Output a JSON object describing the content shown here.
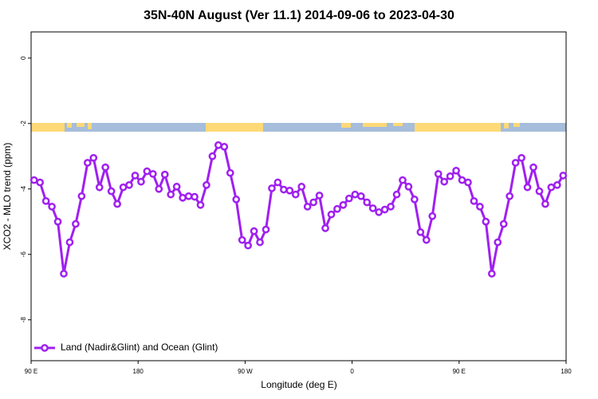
{
  "chart_data": {
    "type": "line",
    "title": "35N-40N August (Ver 11.1)   2014-09-06 to 2023-04-30",
    "x_label": "Longitude (deg E)",
    "y_label": "XCO2 - MLO trend (ppm)",
    "x": [
      92.5,
      97.5,
      102.5,
      107.5,
      112.5,
      117.5,
      122.5,
      127.5,
      132.5,
      137.5,
      142.5,
      147.5,
      152.5,
      157.5,
      162.5,
      167.5,
      172.5,
      177.5,
      182.5,
      187.5,
      192.5,
      197.5,
      202.5,
      207.5,
      212.5,
      217.5,
      222.5,
      227.5,
      232.5,
      237.5,
      242.5,
      247.5,
      252.5,
      257.5,
      262.5,
      267.5,
      272.5,
      277.5,
      282.5,
      287.5,
      292.5,
      297.5,
      302.5,
      307.5,
      312.5,
      317.5,
      322.5,
      327.5,
      332.5,
      337.5,
      342.5,
      347.5,
      352.5,
      357.5,
      362.5,
      367.5,
      372.5,
      377.5,
      382.5,
      387.5,
      392.5,
      397.5,
      402.5,
      407.5,
      412.5,
      417.5,
      422.5,
      427.5,
      432.5,
      437.5,
      442.5,
      447.5,
      452.5,
      457.5,
      462.5,
      467.5,
      472.5,
      477.5,
      482.5,
      487.5,
      492.5,
      497.5,
      502.5,
      507.5,
      512.5,
      517.5,
      522.5,
      527.5,
      532.5,
      537.5
    ],
    "series": [
      {
        "name": "Land (Nadir&Glint) and Ocean (Glint)",
        "color": "#a020f0",
        "values": [
          -3.73,
          -3.8,
          -4.37,
          -4.54,
          -5.0,
          -6.59,
          -5.63,
          -5.07,
          -4.22,
          -3.2,
          -3.05,
          -3.95,
          -3.34,
          -4.07,
          -4.46,
          -3.95,
          -3.88,
          -3.59,
          -3.78,
          -3.46,
          -3.54,
          -4.0,
          -3.56,
          -4.17,
          -3.93,
          -4.27,
          -4.22,
          -4.24,
          -4.49,
          -3.88,
          -3.0,
          -2.66,
          -2.71,
          -3.51,
          -4.32,
          -5.56,
          -5.73,
          -5.29,
          -5.63,
          -5.24,
          -3.98,
          -3.8,
          -4.02,
          -4.05,
          -4.17,
          -3.93,
          -4.54,
          -4.41,
          -4.2,
          -5.2,
          -4.78,
          -4.61,
          -4.49,
          -4.29,
          -4.17,
          -4.22,
          -4.41,
          -4.59,
          -4.71,
          -4.63,
          -4.54,
          -4.17,
          -3.73,
          -3.93,
          -4.32,
          -5.32,
          -5.56,
          -4.83,
          -3.54,
          -3.78,
          -3.61,
          -3.44,
          -3.73,
          -3.8,
          -4.37,
          -4.54,
          -5.0,
          -6.59,
          -5.63,
          -5.07,
          -4.22,
          -3.2,
          -3.05,
          -3.95,
          -3.34,
          -4.07,
          -4.46,
          -3.95,
          -3.88,
          -3.59
        ]
      }
    ],
    "xlim": [
      90,
      540
    ],
    "xticks": [
      {
        "value": 90,
        "label": "90 E"
      },
      180,
      {
        "value": 270,
        "label": "90 W"
      },
      {
        "value": 360,
        "label": "0"
      },
      {
        "value": 450,
        "label": "90 E"
      },
      {
        "value": 540,
        "label": "180"
      }
    ],
    "ylim": [
      -9.25,
      0.8
    ],
    "yticks": [
      0,
      -2,
      -4,
      -6,
      -8
    ],
    "legend": "bottom-left"
  }
}
